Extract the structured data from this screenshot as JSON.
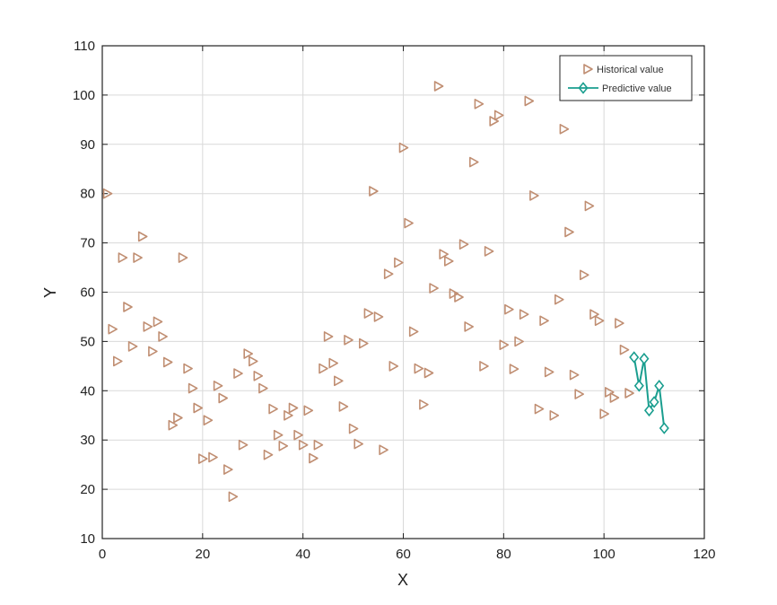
{
  "chart_data": {
    "type": "scatter",
    "xlabel": "X",
    "ylabel": "Y",
    "xlim": [
      0,
      120
    ],
    "ylim": [
      10,
      110
    ],
    "xticks": [
      0,
      20,
      40,
      60,
      80,
      100,
      120
    ],
    "yticks": [
      10,
      20,
      30,
      40,
      50,
      60,
      70,
      80,
      90,
      100,
      110
    ],
    "grid": true,
    "legend_position": "top-right",
    "series": [
      {
        "name": "Historical value",
        "marker": "triangle-right",
        "color": "#c08e72",
        "points": [
          [
            1,
            80
          ],
          [
            2,
            52.5
          ],
          [
            3,
            46
          ],
          [
            4,
            67
          ],
          [
            5,
            57
          ],
          [
            6,
            49
          ],
          [
            7,
            67
          ],
          [
            8,
            71.3
          ],
          [
            9,
            53
          ],
          [
            10,
            48
          ],
          [
            11,
            54
          ],
          [
            12,
            51
          ],
          [
            13,
            45.8
          ],
          [
            14,
            33
          ],
          [
            15,
            34.5
          ],
          [
            16,
            67
          ],
          [
            17,
            44.5
          ],
          [
            18,
            40.5
          ],
          [
            19,
            36.5
          ],
          [
            20,
            26.2
          ],
          [
            21,
            34
          ],
          [
            22,
            26.5
          ],
          [
            23,
            41
          ],
          [
            24,
            38.5
          ],
          [
            25,
            24
          ],
          [
            26,
            18.5
          ],
          [
            27,
            43.5
          ],
          [
            28,
            29
          ],
          [
            29,
            47.5
          ],
          [
            30,
            46
          ],
          [
            31,
            43
          ],
          [
            32,
            40.5
          ],
          [
            33,
            27
          ],
          [
            34,
            36.3
          ],
          [
            35,
            31
          ],
          [
            36,
            28.8
          ],
          [
            37,
            35
          ],
          [
            38,
            36.5
          ],
          [
            39,
            31
          ],
          [
            40,
            29
          ],
          [
            41,
            36
          ],
          [
            42,
            26.3
          ],
          [
            43,
            29
          ],
          [
            44,
            44.5
          ],
          [
            45,
            51
          ],
          [
            46,
            45.6
          ],
          [
            47,
            42
          ],
          [
            48,
            36.8
          ],
          [
            49,
            50.3
          ],
          [
            50,
            32.3
          ],
          [
            51,
            29.2
          ],
          [
            52,
            49.6
          ],
          [
            53,
            55.7
          ],
          [
            54,
            80.5
          ],
          [
            55,
            55
          ],
          [
            56,
            28
          ],
          [
            57,
            63.7
          ],
          [
            58,
            45
          ],
          [
            59,
            66
          ],
          [
            60,
            89.3
          ],
          [
            61,
            74
          ],
          [
            62,
            52
          ],
          [
            63,
            44.5
          ],
          [
            64,
            37.2
          ],
          [
            65,
            43.6
          ],
          [
            66,
            60.8
          ],
          [
            67,
            101.8
          ],
          [
            68,
            67.7
          ],
          [
            69,
            66.3
          ],
          [
            70,
            59.7
          ],
          [
            71,
            59
          ],
          [
            72,
            69.7
          ],
          [
            73,
            53
          ],
          [
            74,
            86.4
          ],
          [
            75,
            98.2
          ],
          [
            76,
            45
          ],
          [
            77,
            68.3
          ],
          [
            78,
            94.7
          ],
          [
            79,
            95.9
          ],
          [
            80,
            49.3
          ],
          [
            81,
            56.5
          ],
          [
            82,
            44.4
          ],
          [
            83,
            50
          ],
          [
            84,
            55.5
          ],
          [
            85,
            98.8
          ],
          [
            86,
            79.6
          ],
          [
            87,
            36.3
          ],
          [
            88,
            54.2
          ],
          [
            89,
            43.8
          ],
          [
            90,
            35
          ],
          [
            91,
            58.5
          ],
          [
            92,
            93.1
          ],
          [
            93,
            72.2
          ],
          [
            94,
            43.2
          ],
          [
            95,
            39.3
          ],
          [
            96,
            63.5
          ],
          [
            97,
            77.5
          ],
          [
            98,
            55.5
          ],
          [
            99,
            54.2
          ],
          [
            100,
            35.3
          ],
          [
            101,
            39.7
          ],
          [
            102,
            38.6
          ],
          [
            103,
            53.7
          ],
          [
            104,
            48.3
          ],
          [
            105,
            39.5
          ]
        ]
      },
      {
        "name": "Predictive value",
        "marker": "diamond",
        "line": true,
        "color": "#1a9e8f",
        "points": [
          [
            106,
            46.8
          ],
          [
            107,
            41
          ],
          [
            108,
            46.5
          ],
          [
            109,
            36
          ],
          [
            110,
            37.7
          ],
          [
            111,
            41
          ],
          [
            112,
            32.4
          ]
        ]
      }
    ]
  }
}
